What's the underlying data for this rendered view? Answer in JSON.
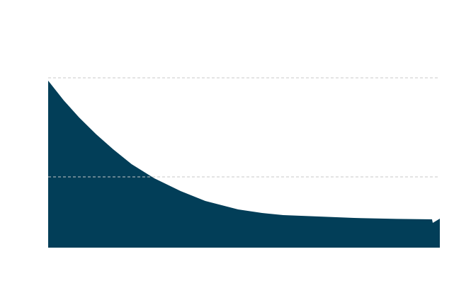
{
  "chart_data": {
    "type": "area",
    "title": "",
    "xlabel": "",
    "ylabel": "",
    "xlim": [
      0,
      100
    ],
    "ylim": [
      0,
      12
    ],
    "grid": true,
    "gridlines_y": [
      5,
      12
    ],
    "fill_color": "#023e58",
    "grid_color": "#c8c8c8",
    "x": [
      0,
      4,
      7.9,
      12.3,
      16.6,
      21.3,
      27.1,
      33.8,
      40.1,
      48.5,
      54.6,
      60,
      69.1,
      78.1,
      89,
      98,
      98.2,
      100
    ],
    "values": [
      11.8,
      10.4,
      9.2,
      8,
      6.95,
      5.9,
      4.9,
      4,
      3.3,
      2.7,
      2.45,
      2.3,
      2.2,
      2.1,
      2.03,
      2,
      1.75,
      2.05
    ]
  }
}
